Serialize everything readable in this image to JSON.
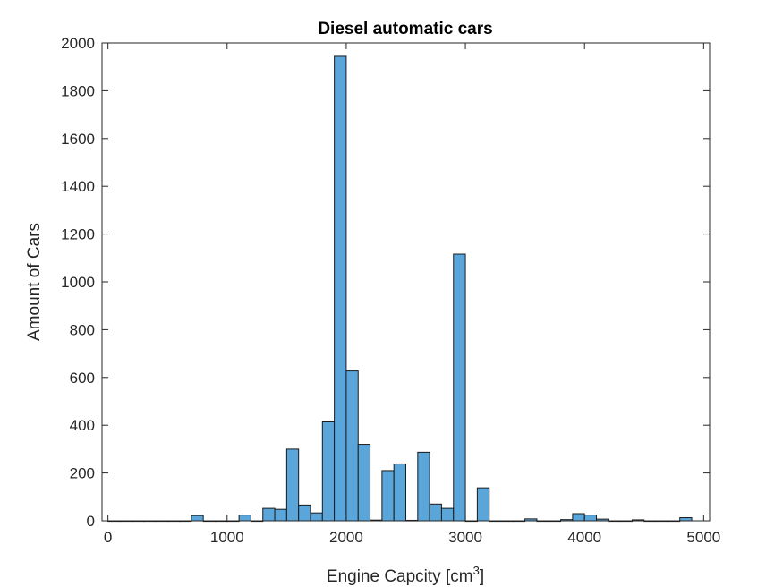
{
  "chart_data": {
    "type": "bar",
    "title": "Diesel automatic cars",
    "xlabel": "Engine Capcity [cm",
    "xlabel_sup": "3",
    "xlabel_suffix": "]",
    "ylabel": "Amount of Cars",
    "xlim": [
      -50,
      5050
    ],
    "ylim": [
      0,
      2000
    ],
    "xticks": [
      0,
      1000,
      2000,
      3000,
      4000,
      5000
    ],
    "yticks": [
      0,
      200,
      400,
      600,
      800,
      1000,
      1200,
      1400,
      1600,
      1800,
      2000
    ],
    "bin_width": 100,
    "bar_color": "#5aa5da",
    "edge_color": "#1a1a1a",
    "bins": [
      {
        "x": 50,
        "value": 0
      },
      {
        "x": 150,
        "value": 0
      },
      {
        "x": 250,
        "value": 0
      },
      {
        "x": 350,
        "value": 0
      },
      {
        "x": 450,
        "value": 0
      },
      {
        "x": 550,
        "value": 0
      },
      {
        "x": 650,
        "value": 0
      },
      {
        "x": 750,
        "value": 22
      },
      {
        "x": 850,
        "value": 0
      },
      {
        "x": 950,
        "value": 0
      },
      {
        "x": 1050,
        "value": 0
      },
      {
        "x": 1150,
        "value": 24
      },
      {
        "x": 1250,
        "value": 0
      },
      {
        "x": 1350,
        "value": 52
      },
      {
        "x": 1450,
        "value": 48
      },
      {
        "x": 1550,
        "value": 300
      },
      {
        "x": 1650,
        "value": 66
      },
      {
        "x": 1750,
        "value": 33
      },
      {
        "x": 1850,
        "value": 414
      },
      {
        "x": 1950,
        "value": 1944
      },
      {
        "x": 2050,
        "value": 627
      },
      {
        "x": 2150,
        "value": 320
      },
      {
        "x": 2250,
        "value": 3
      },
      {
        "x": 2350,
        "value": 210
      },
      {
        "x": 2450,
        "value": 238
      },
      {
        "x": 2550,
        "value": 2
      },
      {
        "x": 2650,
        "value": 287
      },
      {
        "x": 2750,
        "value": 70
      },
      {
        "x": 2850,
        "value": 52
      },
      {
        "x": 2950,
        "value": 1116
      },
      {
        "x": 3050,
        "value": 0
      },
      {
        "x": 3150,
        "value": 138
      },
      {
        "x": 3250,
        "value": 0
      },
      {
        "x": 3350,
        "value": 0
      },
      {
        "x": 3450,
        "value": 0
      },
      {
        "x": 3550,
        "value": 8
      },
      {
        "x": 3650,
        "value": 0
      },
      {
        "x": 3750,
        "value": 0
      },
      {
        "x": 3850,
        "value": 5
      },
      {
        "x": 3950,
        "value": 30
      },
      {
        "x": 4050,
        "value": 24
      },
      {
        "x": 4150,
        "value": 7
      },
      {
        "x": 4250,
        "value": 0
      },
      {
        "x": 4350,
        "value": 0
      },
      {
        "x": 4450,
        "value": 4
      },
      {
        "x": 4550,
        "value": 0
      },
      {
        "x": 4650,
        "value": 0
      },
      {
        "x": 4750,
        "value": 0
      },
      {
        "x": 4850,
        "value": 13
      }
    ]
  }
}
